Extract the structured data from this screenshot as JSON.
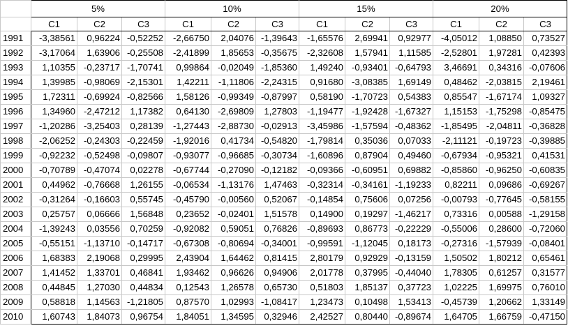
{
  "groups": [
    "5%",
    "10%",
    "15%",
    "20%"
  ],
  "columns": [
    "C1",
    "C2",
    "C3"
  ],
  "rows": [
    {
      "year": "1991",
      "values": [
        "-3,38561",
        "0,96224",
        "-0,52252",
        "-2,66750",
        "2,04076",
        "-1,39643",
        "-1,65576",
        "2,69941",
        "0,92977",
        "-4,05012",
        "1,08850",
        "0,73527"
      ]
    },
    {
      "year": "1992",
      "values": [
        "-3,17064",
        "1,63906",
        "-0,25508",
        "-2,41899",
        "1,85653",
        "-0,35675",
        "-2,32608",
        "1,57941",
        "1,11585",
        "-2,52801",
        "1,97281",
        "0,42393"
      ]
    },
    {
      "year": "1993",
      "values": [
        "1,10355",
        "-0,23717",
        "-1,70741",
        "0,99864",
        "-0,02049",
        "-1,85360",
        "1,49240",
        "-0,93401",
        "-0,64793",
        "3,46691",
        "0,34316",
        "-0,07606"
      ]
    },
    {
      "year": "1994",
      "values": [
        "1,39985",
        "-0,98069",
        "-2,15301",
        "1,42211",
        "-1,11806",
        "-2,24315",
        "0,91680",
        "-3,08385",
        "1,69149",
        "0,48462",
        "-2,03815",
        "2,19461"
      ]
    },
    {
      "year": "1995",
      "values": [
        "1,72311",
        "-0,69924",
        "-0,82566",
        "1,58126",
        "-0,99349",
        "-0,87997",
        "0,58190",
        "-1,70723",
        "0,54383",
        "0,85547",
        "-1,67174",
        "1,09327"
      ]
    },
    {
      "year": "1996",
      "values": [
        "1,34960",
        "-2,47212",
        "1,17382",
        "0,64130",
        "-2,69809",
        "1,27803",
        "-1,19477",
        "-1,92428",
        "-1,67327",
        "1,15153",
        "-1,75298",
        "-0,85475"
      ]
    },
    {
      "year": "1997",
      "values": [
        "-1,20286",
        "-3,25403",
        "0,28139",
        "-1,27443",
        "-2,88730",
        "-0,02913",
        "-3,45986",
        "-1,57594",
        "-0,48362",
        "-1,85495",
        "-2,04811",
        "-0,36828"
      ]
    },
    {
      "year": "1998",
      "values": [
        "-2,06252",
        "-0,24303",
        "-0,22459",
        "-1,92016",
        "0,41734",
        "-0,54820",
        "-1,79814",
        "0,35036",
        "0,07033",
        "-2,11121",
        "-0,19723",
        "-0,39885"
      ]
    },
    {
      "year": "1999",
      "values": [
        "-0,92232",
        "-0,52498",
        "-0,09807",
        "-0,93077",
        "-0,96685",
        "-0,30734",
        "-1,60896",
        "0,87904",
        "0,49460",
        "-0,67934",
        "-0,95321",
        "0,41531"
      ]
    },
    {
      "year": "2000",
      "values": [
        "-0,70789",
        "-0,47074",
        "0,02278",
        "-0,67744",
        "-0,27090",
        "-0,12182",
        "-0,09366",
        "-0,60951",
        "0,69882",
        "-0,85860",
        "-0,96250",
        "-0,60835"
      ]
    },
    {
      "year": "2001",
      "values": [
        "0,44962",
        "-0,76668",
        "1,26155",
        "-0,06534",
        "-1,13176",
        "1,47463",
        "-0,32314",
        "-0,34161",
        "-1,19233",
        "0,82211",
        "0,09686",
        "-0,69267"
      ]
    },
    {
      "year": "2002",
      "values": [
        "-0,31264",
        "-0,16603",
        "0,55745",
        "-0,45790",
        "-0,00560",
        "0,52067",
        "-0,14854",
        "0,75606",
        "0,07256",
        "-0,00793",
        "-0,77645",
        "-0,58155"
      ]
    },
    {
      "year": "2003",
      "values": [
        "0,25757",
        "0,06666",
        "1,56848",
        "0,23652",
        "-0,02401",
        "1,51578",
        "0,14900",
        "0,19297",
        "-1,46217",
        "0,73316",
        "0,00588",
        "-1,29158"
      ]
    },
    {
      "year": "2004",
      "values": [
        "-1,39243",
        "0,03556",
        "0,70259",
        "-0,92082",
        "0,59051",
        "0,76826",
        "-0,89693",
        "0,86773",
        "-0,22229",
        "-0,55006",
        "0,28600",
        "-0,72060"
      ]
    },
    {
      "year": "2005",
      "values": [
        "-0,55151",
        "-1,13710",
        "-0,14717",
        "-0,67308",
        "-0,80694",
        "-0,34001",
        "-0,99591",
        "-1,12045",
        "0,18173",
        "-0,27316",
        "-1,57939",
        "-0,08401"
      ]
    },
    {
      "year": "2006",
      "values": [
        "1,68383",
        "2,19068",
        "0,29995",
        "2,43904",
        "1,64462",
        "0,81415",
        "2,80179",
        "0,92929",
        "-0,13159",
        "1,50502",
        "1,80212",
        "0,65461"
      ]
    },
    {
      "year": "2007",
      "values": [
        "1,41452",
        "1,33701",
        "0,46841",
        "1,93462",
        "0,96626",
        "0,94906",
        "2,01778",
        "0,37995",
        "-0,44040",
        "1,78305",
        "0,61257",
        "0,31577"
      ]
    },
    {
      "year": "2008",
      "values": [
        "0,44845",
        "1,27030",
        "0,44834",
        "0,12543",
        "1,26578",
        "0,65730",
        "0,51803",
        "1,85137",
        "0,37723",
        "1,02225",
        "1,69975",
        "0,76010"
      ]
    },
    {
      "year": "2009",
      "values": [
        "0,58818",
        "1,14563",
        "-1,21805",
        "0,87570",
        "1,02993",
        "-1,08417",
        "1,23473",
        "0,10498",
        "1,53413",
        "-0,45739",
        "1,20662",
        "1,33149"
      ]
    },
    {
      "year": "2010",
      "values": [
        "1,60743",
        "1,84073",
        "0,96754",
        "1,84051",
        "1,34595",
        "0,32946",
        "2,42527",
        "0,80440",
        "-0,89674",
        "1,64705",
        "1,66759",
        "-0,47150"
      ]
    }
  ]
}
